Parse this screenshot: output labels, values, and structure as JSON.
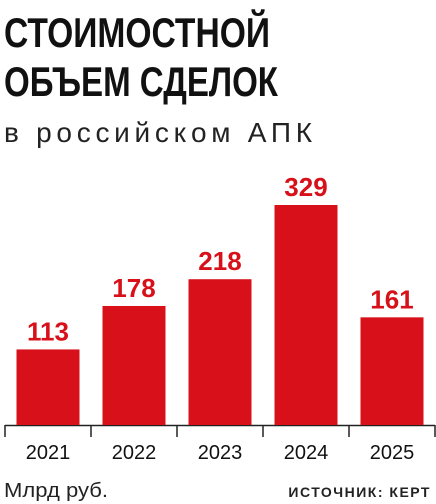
{
  "chart_data": {
    "type": "bar",
    "title": [
      "СТОИМОСТНОЙ",
      "ОБЪЕМ СДЕЛОК"
    ],
    "subtitle": "в российском АПК",
    "categories": [
      "2021",
      "2022",
      "2023",
      "2024",
      "2025"
    ],
    "values": [
      113,
      178,
      218,
      329,
      161
    ],
    "color": "#d7101a",
    "unit": "Млрд руб.",
    "source": "ИСТОЧНИК: КЕРТ"
  }
}
